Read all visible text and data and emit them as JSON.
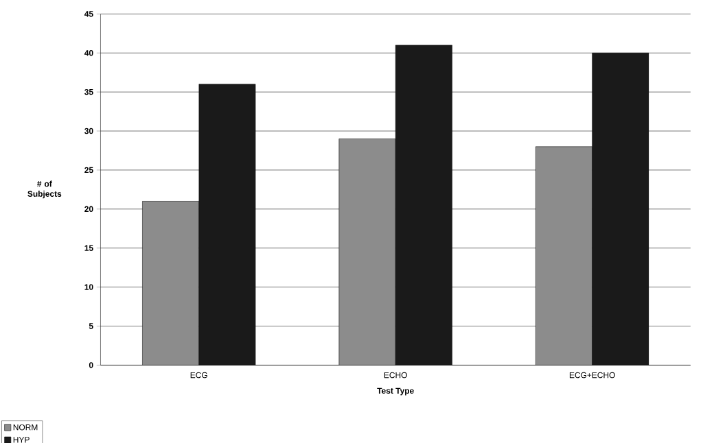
{
  "chart_data": {
    "type": "bar",
    "xlabel": "Test Type",
    "ylabel": "# of Subjects",
    "categories": [
      "ECG",
      "ECHO",
      "ECG+ECHO"
    ],
    "series": [
      {
        "name": "NORM",
        "color": "#8c8c8c",
        "values": [
          21,
          29,
          28
        ]
      },
      {
        "name": "HYP",
        "color": "#1a1a1a",
        "values": [
          36,
          41,
          40
        ]
      }
    ],
    "ylim": [
      0,
      45
    ],
    "yticks": [
      0,
      5,
      10,
      15,
      20,
      25,
      30,
      35,
      40,
      45
    ],
    "grid": "y",
    "legend": "bottom left"
  }
}
